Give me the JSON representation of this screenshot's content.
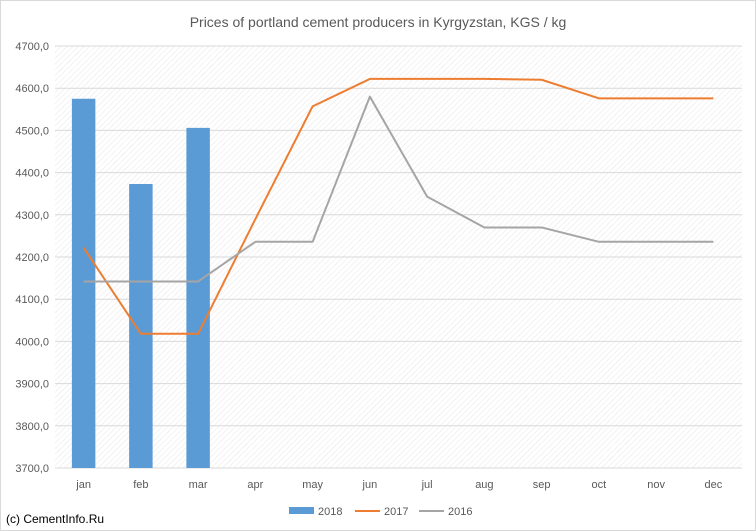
{
  "chart_data": {
    "type": "bar+line",
    "title": "Prices of portland cement producers in Kyrgyzstan, KGS / kg",
    "categories": [
      "jan",
      "feb",
      "mar",
      "apr",
      "may",
      "jun",
      "jul",
      "aug",
      "sep",
      "oct",
      "nov",
      "dec"
    ],
    "ylim": [
      3700,
      4700
    ],
    "yticks": [
      "3700,0",
      "3800,0",
      "3900,0",
      "4000,0",
      "4100,0",
      "4200,0",
      "4300,0",
      "4400,0",
      "4500,0",
      "4600,0",
      "4700,0"
    ],
    "grid": "horizontal",
    "legend_position": "bottom",
    "series": [
      {
        "name": "2018",
        "type": "bar",
        "color": "#5b9bd5",
        "values": [
          4575,
          4373,
          4506,
          null,
          null,
          null,
          null,
          null,
          null,
          null,
          null,
          null
        ]
      },
      {
        "name": "2017",
        "type": "line",
        "color": "#ed7d31",
        "values": [
          4222,
          4018,
          4018,
          4290,
          4557,
          4622,
          4622,
          4622,
          4620,
          4576,
          4576,
          4576
        ]
      },
      {
        "name": "2016",
        "type": "line",
        "color": "#a5a5a5",
        "values": [
          4142,
          4142,
          4142,
          4236,
          4236,
          4580,
          4343,
          4270,
          4270,
          4236,
          4236,
          4236
        ]
      }
    ]
  },
  "watermark": "(c) CementInfo.Ru"
}
